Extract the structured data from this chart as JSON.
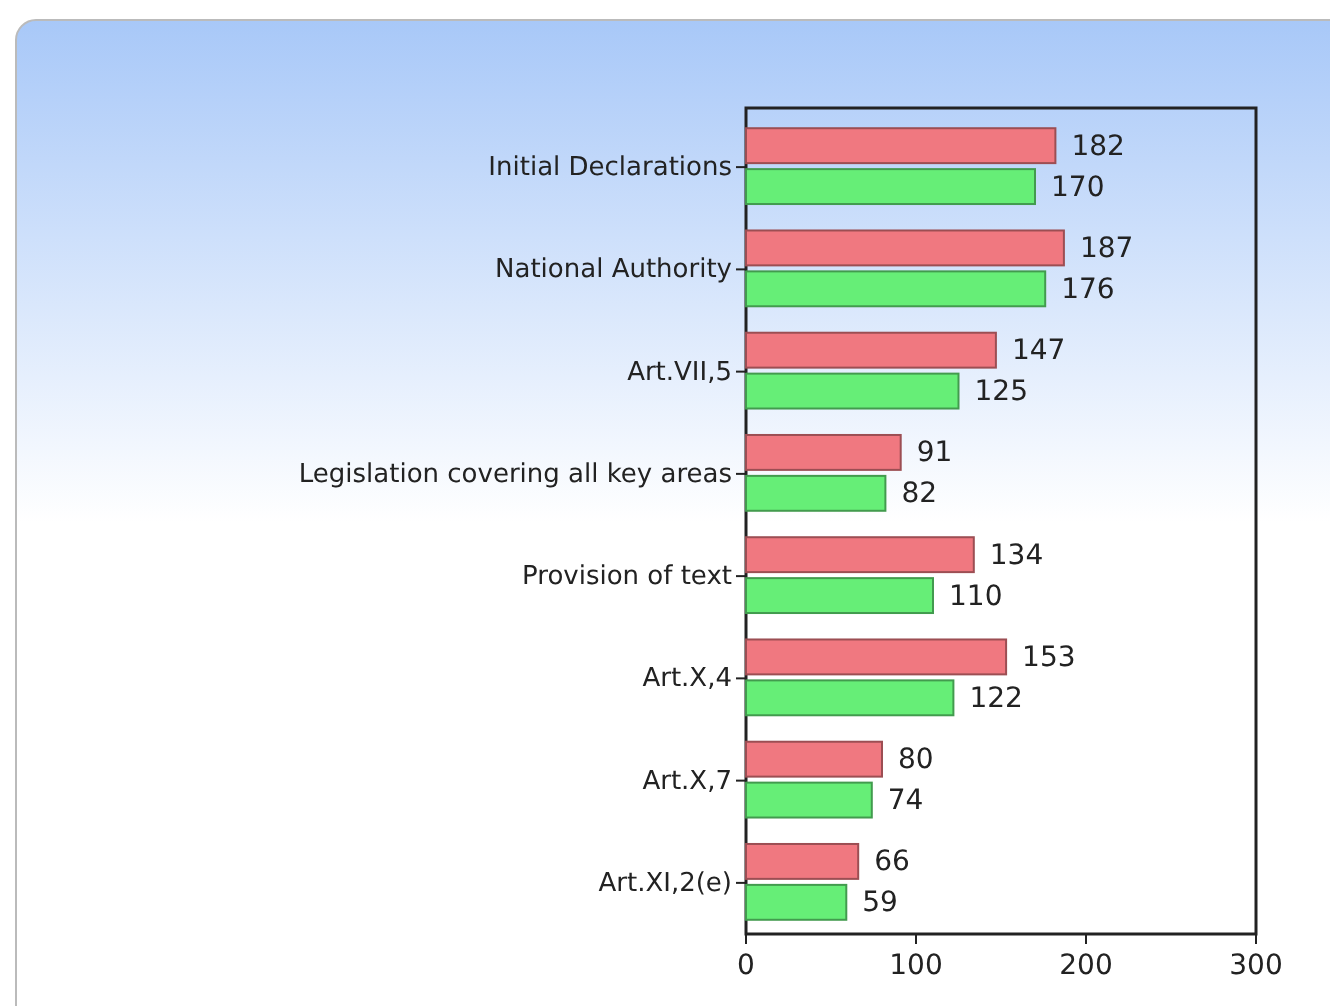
{
  "chart_data": {
    "type": "bar",
    "orientation": "horizontal",
    "categories": [
      "Initial Declarations",
      "National Authority",
      "Art.VII,5",
      "Legislation covering all key areas",
      "Provision of text",
      "Art.X,4",
      "Art.X,7",
      "Art.XI,2(e)"
    ],
    "series": [
      {
        "color": "#f07880",
        "values": [
          182,
          187,
          147,
          91,
          134,
          153,
          80,
          66
        ]
      },
      {
        "color": "#66ee77",
        "values": [
          170,
          176,
          125,
          82,
          110,
          122,
          74,
          59
        ]
      }
    ],
    "xlim": [
      0,
      300
    ],
    "xticks": [
      0,
      100,
      200,
      300
    ],
    "data_labels": true
  }
}
